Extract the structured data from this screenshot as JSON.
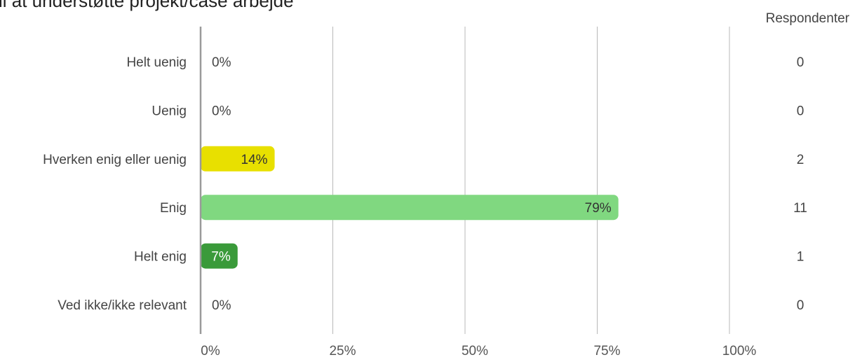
{
  "title": "il at understøtte projekt/case arbejde",
  "respondents_header": "Respondenter",
  "chart_data": {
    "type": "bar",
    "orientation": "horizontal",
    "title": "il at understøtte projekt/case arbejde",
    "categories": [
      "Helt uenig",
      "Uenig",
      "Hverken enig eller uenig",
      "Enig",
      "Helt enig",
      "Ved ikke/ikke relevant"
    ],
    "values": [
      0,
      0,
      14,
      79,
      7,
      0
    ],
    "value_labels": [
      "0%",
      "0%",
      "14%",
      "79%",
      "7%",
      "0%"
    ],
    "respondents": [
      "0",
      "0",
      "2",
      "11",
      "1",
      "0"
    ],
    "colors": [
      "#e05a5a",
      "#f0a35c",
      "#e8e000",
      "#80d880",
      "#3a9a3a",
      "#cccccc"
    ],
    "label_colors": [
      "#444444",
      "#444444",
      "#333333",
      "#333333",
      "#ffffff",
      "#444444"
    ],
    "xlim": [
      0,
      100
    ],
    "xticks": [
      0,
      25,
      50,
      75,
      100
    ],
    "xtick_labels": [
      "0%",
      "25%",
      "50%",
      "75%",
      "100%"
    ],
    "grid": true,
    "unit": "%"
  }
}
